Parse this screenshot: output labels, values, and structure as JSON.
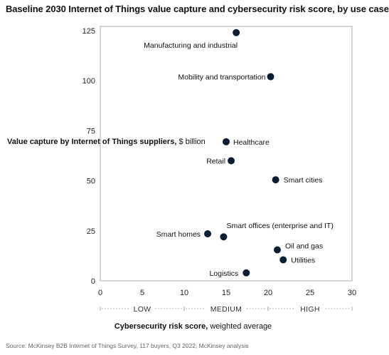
{
  "title": "Baseline 2030 Internet of Things value capture and cybersecurity risk score, by use case",
  "ylabel": {
    "bold": "Value capture by Internet of Things suppliers,",
    "unit": " $ billion"
  },
  "xlabel": {
    "bold": "Cybersecurity risk score,",
    "rest": " weighted average"
  },
  "source": "Source: McKinsey B2B Internet of Things Survey, 117 buyers, Q3 2022; McKinsey analysis",
  "chart_data": {
    "type": "scatter",
    "title": "Baseline 2030 Internet of Things value capture and cybersecurity risk score, by use case",
    "xlabel": "Cybersecurity risk score, weighted average",
    "ylabel": "Value capture by Internet of Things suppliers, $ billion",
    "xlim": [
      0,
      30
    ],
    "ylim": [
      0,
      128
    ],
    "xticks": [
      0,
      5,
      10,
      15,
      20,
      25,
      30
    ],
    "yticks": [
      0,
      25,
      50,
      75,
      100,
      125
    ],
    "grid": false,
    "color": "#0b1e33",
    "points": [
      {
        "label": "Manufacturing and industrial",
        "x": 16.2,
        "y": 124
      },
      {
        "label": "Mobility and transportation",
        "x": 20.3,
        "y": 102
      },
      {
        "label": "Healthcare",
        "x": 15.0,
        "y": 69.5
      },
      {
        "label": "Retail",
        "x": 15.6,
        "y": 60
      },
      {
        "label": "Smart cities",
        "x": 20.9,
        "y": 50.5
      },
      {
        "label": "Smart homes",
        "x": 12.8,
        "y": 23.5
      },
      {
        "label": "Smart offices (enterprise and IT)",
        "x": 14.7,
        "y": 22
      },
      {
        "label": "Oil and gas",
        "x": 21.1,
        "y": 15.5
      },
      {
        "label": "Utilities",
        "x": 21.8,
        "y": 10.5
      },
      {
        "label": "Logistics",
        "x": 17.4,
        "y": 4
      }
    ],
    "bands": [
      {
        "label": "LOW",
        "from": 0,
        "to": 10
      },
      {
        "label": "MEDIUM",
        "from": 10,
        "to": 20
      },
      {
        "label": "HIGH",
        "from": 20,
        "to": 30
      }
    ]
  }
}
